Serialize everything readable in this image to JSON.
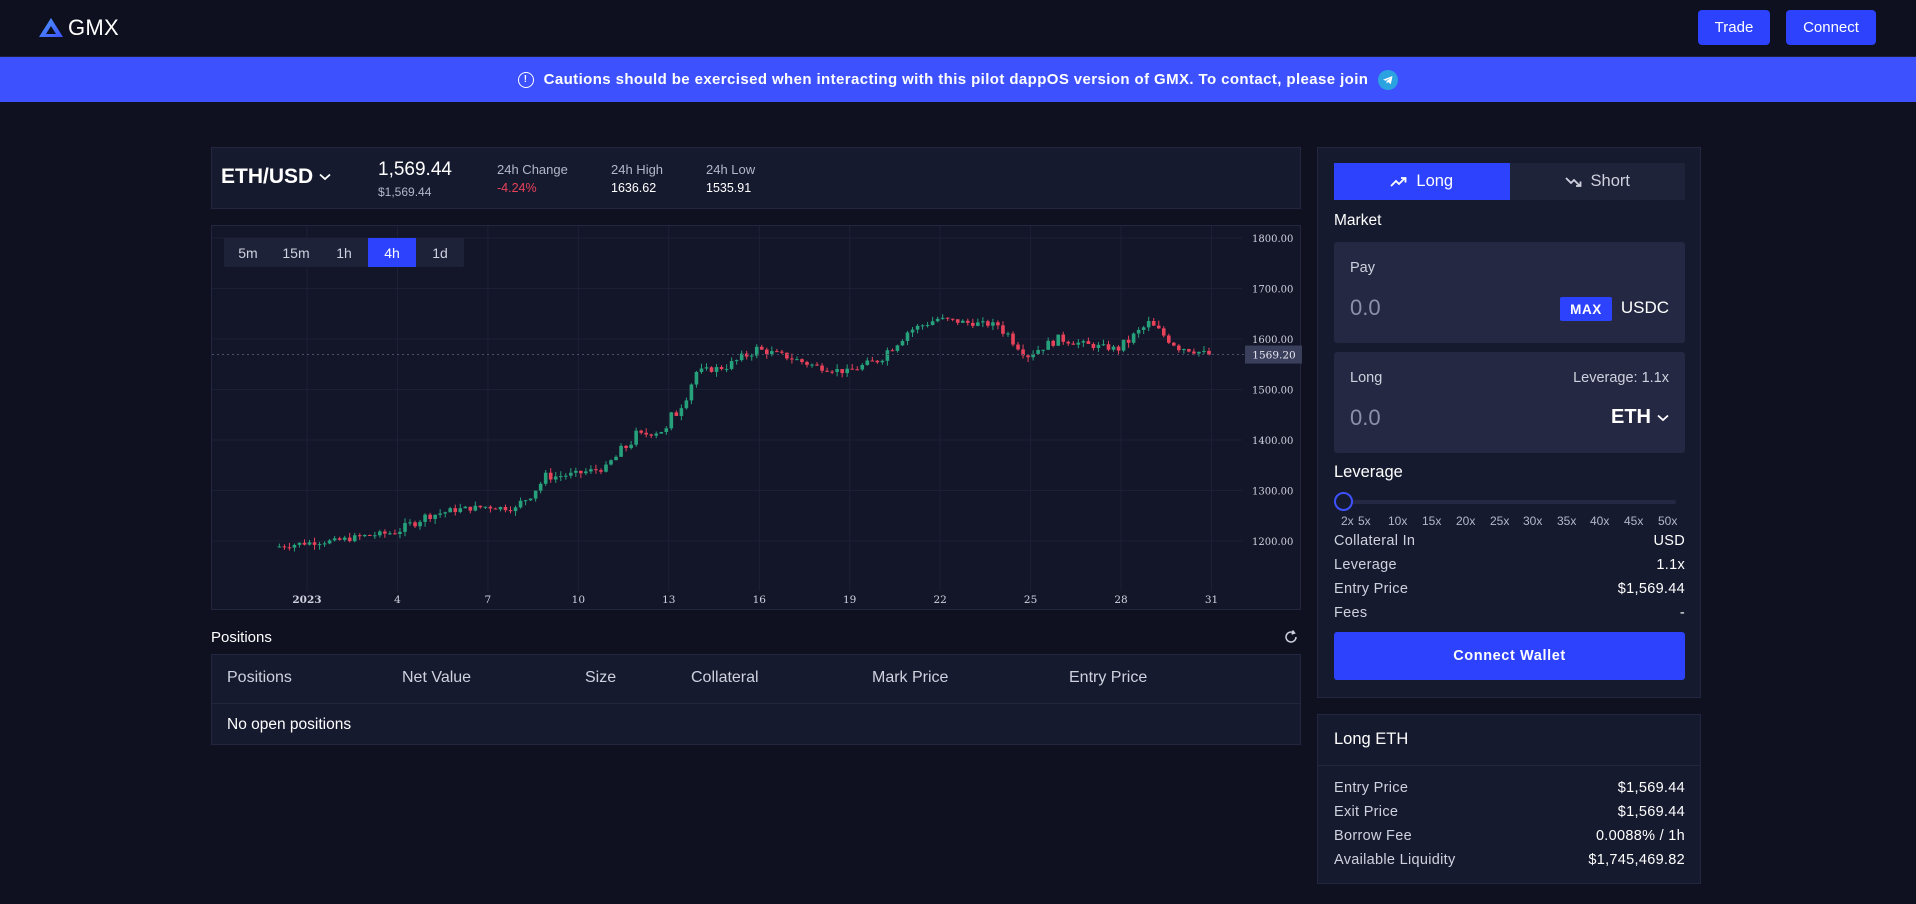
{
  "header": {
    "logo_text": "GMX",
    "trade_label": "Trade",
    "connect_label": "Connect"
  },
  "banner": {
    "text": "Cautions should be exercised when interacting with this pilot dappOS version of GMX. To contact, please join",
    "accent": "#3d51ff"
  },
  "ticker": {
    "pair": "ETH/USD",
    "price": "1,569.44",
    "price_usd": "$1,569.44",
    "change_label": "24h Change",
    "change_value": "-4.24%",
    "high_label": "24h High",
    "high_value": "1636.62",
    "low_label": "24h Low",
    "low_value": "1535.91"
  },
  "timeframes": [
    "5m",
    "15m",
    "1h",
    "4h",
    "1d"
  ],
  "active_timeframe": "4h",
  "chart_data": {
    "type": "candlestick",
    "ylim": [
      1140,
      1820
    ],
    "yticks": [
      "1800.00",
      "1700.00",
      "1600.00",
      "1500.00",
      "1400.00",
      "1300.00",
      "1200.00"
    ],
    "ytick_values": [
      1800,
      1700,
      1600,
      1500,
      1400,
      1300,
      1200
    ],
    "xticks": [
      "2023",
      "4",
      "7",
      "10",
      "13",
      "16",
      "19",
      "22",
      "25",
      "28",
      "31"
    ],
    "xtick_days": [
      1,
      4,
      7,
      10,
      13,
      16,
      19,
      22,
      25,
      28,
      31
    ],
    "current_price_label": "1569.20",
    "current_price": 1569.2,
    "up_color": "#26a17b",
    "down_color": "#e8425a",
    "daily_closes": [
      1196,
      1200,
      1210,
      1217,
      1248,
      1262,
      1268,
      1264,
      1325,
      1333,
      1345,
      1408,
      1420,
      1535,
      1545,
      1580,
      1565,
      1545,
      1535,
      1558,
      1615,
      1640,
      1632,
      1628,
      1570,
      1600,
      1588,
      1580,
      1630,
      1585,
      1569
    ],
    "start_day": 0.3,
    "start_price": 1188
  },
  "positions": {
    "title": "Positions",
    "columns": [
      "Positions",
      "Net Value",
      "Size",
      "Collateral",
      "Mark Price",
      "Entry Price"
    ],
    "empty_text": "No open positions"
  },
  "trade_box": {
    "long_tab": "Long",
    "short_tab": "Short",
    "market_label": "Market",
    "pay_label": "Pay",
    "pay_value": "0.0",
    "max_label": "MAX",
    "pay_token": "USDC",
    "long_label": "Long",
    "leverage_display": "Leverage: 1.1x",
    "long_value": "0.0",
    "long_token": "ETH",
    "leverage_title": "Leverage",
    "leverage_marks": [
      "2x",
      "5x",
      "10x",
      "15x",
      "20x",
      "25x",
      "30x",
      "35x",
      "40x",
      "45x",
      "50x"
    ],
    "leverage_level": 1.1,
    "rows": [
      {
        "k": "Collateral In",
        "v": "USD"
      },
      {
        "k": "Leverage",
        "v": "1.1x"
      },
      {
        "k": "Entry Price",
        "v": "$1,569.44"
      },
      {
        "k": "Fees",
        "v": "-"
      }
    ],
    "connect_wallet": "Connect Wallet"
  },
  "long_eth": {
    "title": "Long ETH",
    "rows": [
      {
        "k": "Entry Price",
        "v": "$1,569.44"
      },
      {
        "k": "Exit Price",
        "v": "$1,569.44"
      },
      {
        "k": "Borrow Fee",
        "v": "0.0088% / 1h"
      },
      {
        "k": "Available Liquidity",
        "v": "$1,745,469.82"
      }
    ]
  }
}
